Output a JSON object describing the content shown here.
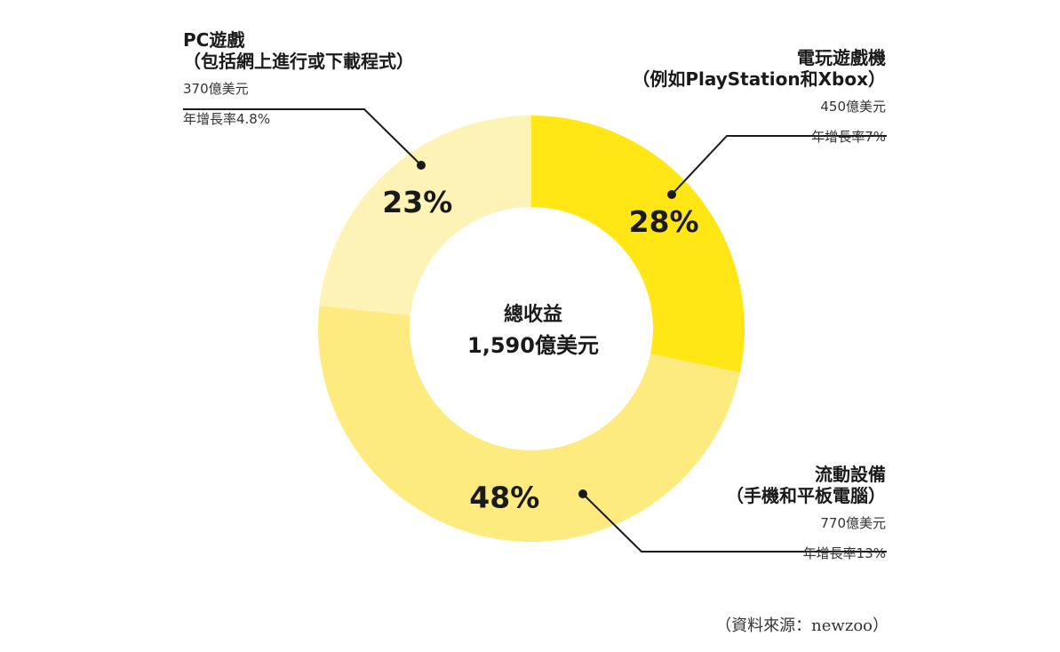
{
  "chart_data": {
    "type": "donut",
    "center_title": "總收益",
    "center_value": "1,590億美元",
    "segments": [
      {
        "name": "電玩遊戲機",
        "paren": "（例如PlayStation和Xbox）",
        "value": 450,
        "value_label": "450億美元",
        "growth": "年增長率7%",
        "percent": 28,
        "percent_label": "28%",
        "color": "#FFE614"
      },
      {
        "name": "流動設備",
        "paren": "（手機和平板電腦）",
        "value": 770,
        "value_label": "770億美元",
        "growth": "年增長率13%",
        "percent": 48,
        "percent_label": "48%",
        "color": "#FDEB80"
      },
      {
        "name": "PC遊戲",
        "paren": "（包括網上進行或下載程式）",
        "value": 370,
        "value_label": "370億美元",
        "growth": "年增長率4.8%",
        "percent": 23,
        "percent_label": "23%",
        "color": "#FEF3B6"
      }
    ],
    "source": "（資料來源：newzoo）"
  }
}
